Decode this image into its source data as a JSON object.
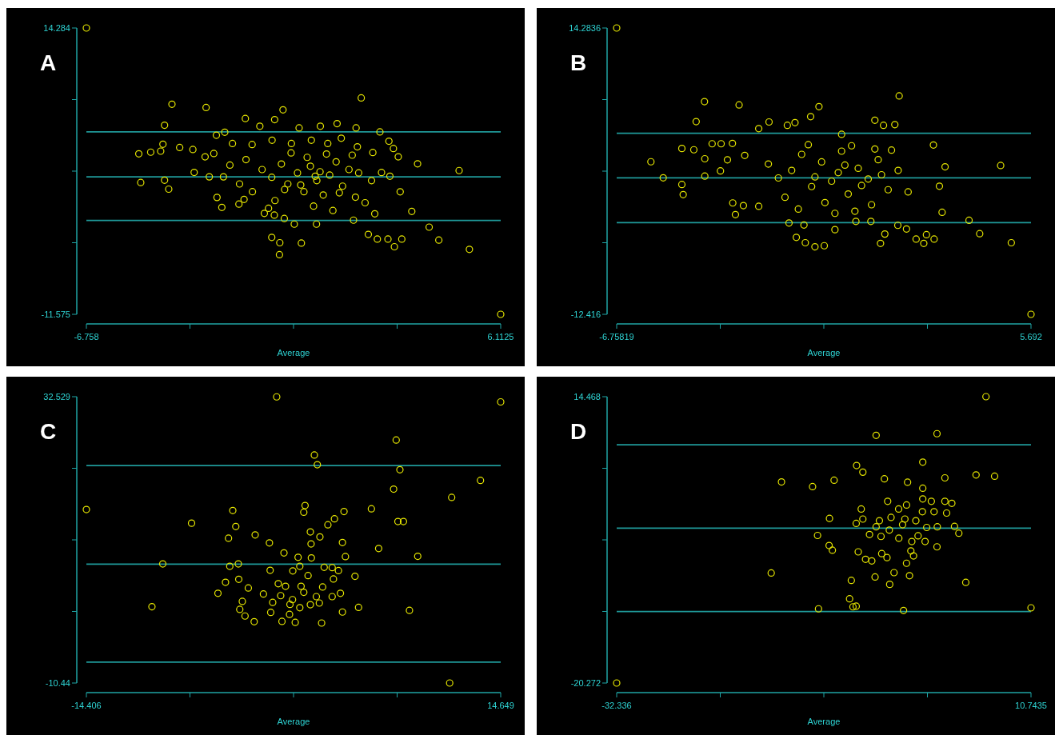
{
  "chart_data": [
    {
      "type": "scatter",
      "title": "A",
      "xlabel": "Average",
      "marker": "circle",
      "xlim": [
        -6.758,
        6.1125
      ],
      "xticks": [
        -6.758,
        {
          "value": -3.54,
          "label": null
        },
        {
          "value": -0.323,
          "label": null
        },
        {
          "value": 2.895,
          "label": null
        },
        6.1125
      ],
      "ylim": [
        -11.575,
        14.284
      ],
      "yticks": [
        -11.575,
        {
          "value": -5.11,
          "label": null
        },
        {
          "value": 1.355,
          "label": null
        },
        {
          "value": 7.819,
          "label": null
        },
        14.284
      ],
      "ref_lines": [
        {
          "axis": "y",
          "value": 4.9,
          "color": "#1f9a9a"
        },
        {
          "axis": "y",
          "value": 0.84,
          "color": "#1f9a9a"
        },
        {
          "axis": "y",
          "value": -3.1,
          "color": "#1f9a9a"
        }
      ],
      "series": [
        {
          "color": "#e6e600",
          "x": [
            -6.758,
            6.1125,
            -4.1,
            -3.04,
            -0.65,
            1.78,
            -1.82,
            -0.91,
            -4.33,
            -1.37,
            -0.15,
            0.51,
            1.03,
            1.62,
            2.36,
            -2.46,
            -2.72,
            1.16,
            2.64,
            -4.38,
            -3.86,
            -3.45,
            -5.13,
            -4.76,
            -4.45,
            2.78,
            2.93,
            3.53,
            4.82,
            -3.07,
            -2.8,
            -2.22,
            -1.61,
            -0.99,
            -0.39,
            0.23,
            0.74,
            1.66,
            2.14,
            -3.41,
            -5.07,
            -4.33,
            -4.2,
            -2.94,
            -2.5,
            2.41,
            2.67,
            2.99,
            3.35,
            3.89,
            4.19,
            5.14,
            -1.0,
            -0.75,
            -0.76,
            -0.08,
            2.0,
            2.28,
            2.61,
            2.81,
            3.04,
            1.54,
            0.39,
            -0.3,
            -0.61,
            -0.92,
            -1.23,
            -2.02,
            -2.55,
            -2.7,
            -1.86,
            -1.3,
            -1.0,
            -0.7,
            -0.5,
            -0.2,
            0.0,
            0.2,
            0.4,
            0.6,
            0.8,
            1.0,
            1.2,
            1.4,
            1.6,
            -1.6,
            -1.8,
            -0.9,
            0.3,
            0.9,
            1.5,
            -0.4,
            0.1,
            0.7,
            -1.1,
            1.9,
            2.1,
            2.2,
            -2.0,
            -2.3,
            1.7,
            0.5,
            -0.1,
            0.35,
            1.1,
            -0.6
          ],
          "values": [
            14.284,
            -11.575,
            7.4,
            7.1,
            6.89,
            7.97,
            6.11,
            6.01,
            5.5,
            5.41,
            5.26,
            5.41,
            5.65,
            5.26,
            4.9,
            4.87,
            4.6,
            4.33,
            4.06,
            3.79,
            3.49,
            3.31,
            2.92,
            3.07,
            3.16,
            3.4,
            2.65,
            2.02,
            1.41,
            2.65,
            2.95,
            3.85,
            3.76,
            4.15,
            3.85,
            4.15,
            3.85,
            3.55,
            3.04,
            1.24,
            0.33,
            0.54,
            -0.27,
            0.84,
            0.84,
            1.23,
            0.9,
            -0.51,
            -2.28,
            -3.7,
            -4.87,
            -5.71,
            -4.63,
            -5.11,
            -6.19,
            -5.14,
            -4.36,
            -4.78,
            -4.78,
            -5.47,
            -4.78,
            -3.07,
            -3.43,
            -3.43,
            -2.92,
            -2.61,
            -2.46,
            -1.62,
            -1.92,
            -1.02,
            -1.2,
            1.5,
            0.8,
            2.0,
            0.2,
            1.2,
            -0.5,
            1.8,
            0.5,
            -0.8,
            1.0,
            2.2,
            0.0,
            1.5,
            -1.0,
            -0.5,
            2.4,
            -1.3,
            -1.8,
            -2.2,
            2.8,
            3.0,
            2.6,
            2.9,
            -2.0,
            -1.5,
            0.5,
            -2.5,
            0.2,
            1.9,
            1.2,
            1.3,
            0.1,
            0.9,
            -0.6,
            -0.3
          ]
        }
      ]
    },
    {
      "type": "scatter",
      "title": "B",
      "xlabel": "Average",
      "marker": "circle",
      "xlim": [
        -6.75819,
        5.692
      ],
      "xticks": [
        -6.75819,
        {
          "value": -3.6457,
          "label": null
        },
        {
          "value": -0.5331,
          "label": null
        },
        {
          "value": 2.5794,
          "label": null
        },
        5.692
      ],
      "ylim": [
        -12.416,
        14.2836
      ],
      "yticks": [
        -12.416,
        {
          "value": -5.7411,
          "label": null
        },
        {
          "value": 0.9338,
          "label": null
        },
        {
          "value": 7.6087,
          "label": null
        },
        14.2836
      ],
      "ref_lines": [
        {
          "axis": "y",
          "value": 4.46,
          "color": "#1f9a9a"
        },
        {
          "axis": "y",
          "value": 0.31,
          "color": "#1f9a9a"
        },
        {
          "axis": "y",
          "value": -3.87,
          "color": "#1f9a9a"
        }
      ],
      "series": [
        {
          "color": "#e6e600",
          "x": [
            -6.75819,
            5.692,
            -4.12,
            -3.08,
            -0.68,
            1.73,
            -0.93,
            -4.37,
            -2.18,
            -1.63,
            -1.4,
            1.0,
            1.26,
            1.6,
            -2.49,
            0.0,
            -4.8,
            -4.44,
            -3.89,
            -3.62,
            -3.28,
            -5.73,
            -5.36,
            -4.11,
            -4.11,
            -4.8,
            -4.76,
            -3.64,
            -3.43,
            -2.91,
            2.76,
            3.11,
            4.78,
            2.94,
            3.02,
            3.83,
            4.15,
            5.1,
            -3.27,
            -3.19,
            -2.95,
            -2.49,
            -1.36,
            -1.09,
            -0.8,
            -0.52,
            -0.2,
            1.17,
            1.3,
            1.69,
            1.95,
            2.24,
            2.47,
            2.78,
            2.55,
            -1.58,
            -1.13,
            0.88,
            0.43,
            -1.5,
            -1.2,
            -0.9,
            -0.6,
            -0.3,
            0.0,
            0.2,
            0.5,
            0.8,
            1.1,
            1.4,
            1.7,
            -1.7,
            -0.5,
            0.3,
            0.9,
            -1.0,
            1.5,
            -0.1,
            0.6,
            -0.8,
            0.1,
            1.2,
            -1.9,
            2.0,
            -2.2,
            0.4,
            -0.2,
            1.0,
            -1.3
          ],
          "values": [
            14.2836,
            -12.416,
            7.42,
            7.11,
            6.95,
            7.95,
            6.02,
            5.55,
            5.52,
            5.21,
            5.46,
            5.68,
            5.21,
            5.27,
            4.9,
            4.37,
            3.05,
            2.93,
            3.49,
            3.49,
            3.52,
            1.81,
            0.31,
            2.09,
            0.47,
            -0.31,
            -1.25,
            0.96,
            1.99,
            2.4,
            3.37,
            1.34,
            1.46,
            -0.47,
            -2.9,
            -3.65,
            -4.9,
            -5.74,
            -2.03,
            -3.12,
            -2.28,
            -2.34,
            -5.24,
            -5.74,
            -6.12,
            -6.02,
            -4.52,
            -5.8,
            -4.93,
            -4.12,
            -4.46,
            -5.4,
            -5.8,
            -5.4,
            -4.99,
            -3.9,
            -4.09,
            -3.75,
            -3.75,
            1.0,
            2.5,
            -0.5,
            1.8,
            0.0,
            2.8,
            -1.2,
            1.2,
            0.2,
            2.0,
            -0.8,
            1.0,
            -1.5,
            -2.0,
            3.3,
            -2.2,
            3.4,
            2.9,
            0.8,
            -0.4,
            0.4,
            1.5,
            0.6,
            0.3,
            -1.0,
            1.6,
            -2.8,
            -3.0,
            3.0,
            -2.6
          ]
        }
      ]
    },
    {
      "type": "scatter",
      "title": "C",
      "xlabel": "Average",
      "marker": "circle",
      "xlim": [
        -14.406,
        14.649
      ],
      "xticks": [
        -14.406,
        {
          "value": -7.14225,
          "label": null
        },
        {
          "value": 0.1215,
          "label": null
        },
        {
          "value": 7.38525,
          "label": null
        },
        14.649
      ],
      "ylim": [
        -10.44,
        32.529
      ],
      "yticks": [
        -10.44,
        {
          "value": 0.30225,
          "label": null
        },
        {
          "value": 11.0445,
          "label": null
        },
        {
          "value": 21.78675,
          "label": null
        },
        32.529
      ],
      "ref_lines": [
        {
          "axis": "y",
          "value": 22.2,
          "color": "#1f9a9a"
        },
        {
          "axis": "y",
          "value": 7.4,
          "color": "#1f9a9a"
        },
        {
          "axis": "y",
          "value": -7.3,
          "color": "#1f9a9a"
        }
      ],
      "series": [
        {
          "color": "#e6e600",
          "x": [
            -1.06,
            14.649,
            -14.406,
            11.07,
            7.32,
            1.58,
            1.79,
            7.58,
            13.23,
            7.14,
            11.21,
            0.93,
            0.84,
            -4.14,
            3.66,
            5.58,
            -7.03,
            -3.93,
            2.99,
            2.53,
            7.44,
            7.83,
            -4.44,
            -2.57,
            -1.57,
            1.3,
            1.97,
            1.35,
            3.55,
            6.09,
            8.83,
            -0.55,
            0.44,
            1.37,
            3.76,
            -9.05,
            -4.35,
            -3.75,
            0.56,
            -1.52,
            0.07,
            2.27,
            2.83,
            3.27,
            1.14,
            4.43,
            -4.65,
            -3.72,
            -3.05,
            -0.95,
            -0.44,
            0.65,
            2.92,
            2.16,
            -5.18,
            -1.99,
            -0.78,
            0.84,
            1.72,
            3.41,
            2.83,
            -9.81,
            -3.47,
            -1.34,
            0.05,
            -0.13,
            1.3,
            1.93,
            0.56,
            4.68,
            8.25,
            -3.65,
            -3.28,
            -1.48,
            -0.16,
            -2.64,
            -0.69,
            0.24,
            2.09,
            3.55
          ],
          "values": [
            32.5,
            31.75,
            15.6,
            -10.44,
            26.03,
            23.78,
            22.32,
            21.57,
            19.97,
            18.66,
            17.41,
            16.2,
            15.2,
            15.45,
            15.3,
            15.7,
            13.55,
            13.05,
            14.2,
            13.3,
            13.8,
            13.8,
            11.29,
            11.79,
            10.59,
            12.24,
            11.49,
            10.44,
            10.64,
            9.74,
            8.58,
            9.08,
            8.43,
            8.33,
            8.53,
            7.43,
            7.08,
            7.43,
            7.08,
            6.48,
            6.38,
            6.93,
            6.88,
            6.43,
            5.68,
            5.58,
            4.67,
            5.12,
            3.82,
            4.47,
            4.07,
            4.07,
            5.17,
            3.97,
            3.02,
            2.92,
            2.67,
            3.17,
            2.52,
            3.02,
            2.52,
            1.01,
            1.81,
            1.66,
            2.07,
            1.36,
            1.31,
            1.56,
            0.86,
            0.91,
            0.46,
            0.61,
            -0.39,
            0.16,
            -0.14,
            -1.24,
            -1.19,
            -1.34,
            -1.44,
            0.21
          ]
        }
      ]
    },
    {
      "type": "scatter",
      "title": "D",
      "xlabel": "Average",
      "marker": "circle",
      "xlim": [
        -32.336,
        10.7435
      ],
      "xticks": [
        -32.336,
        {
          "value": -21.566,
          "label": null
        },
        {
          "value": -10.796,
          "label": null
        },
        {
          "value": -0.0266,
          "label": null
        },
        10.7435
      ],
      "ylim": [
        -20.272,
        14.468
      ],
      "yticks": [
        -20.272,
        {
          "value": -11.587,
          "label": null
        },
        {
          "value": -2.902,
          "label": null
        },
        {
          "value": 5.783,
          "label": null
        },
        14.468
      ],
      "ref_lines": [
        {
          "axis": "y",
          "value": 8.64,
          "color": "#1f9a9a"
        },
        {
          "axis": "y",
          "value": -1.48,
          "color": "#1f9a9a"
        },
        {
          "axis": "y",
          "value": -11.6,
          "color": "#1f9a9a"
        }
      ],
      "series": [
        {
          "color": "#e6e600",
          "x": [
            -32.336,
            6.06,
            10.7435,
            -5.36,
            0.97,
            -0.51,
            -7.39,
            -6.74,
            -4.5,
            -2.09,
            1.79,
            5.03,
            6.96,
            -15.2,
            -11.97,
            -9.73,
            -0.51,
            -0.51,
            -4.16,
            -2.2,
            0.38,
            1.79,
            2.51,
            -6.91,
            -3.02,
            -0.55,
            0.66,
            1.97,
            -10.21,
            -6.74,
            -5.02,
            -3.81,
            -2.37,
            -1.23,
            -7.43,
            -2.61,
            -0.1,
            1.0,
            2.79,
            3.24,
            -5.36,
            -3.99,
            -11.45,
            -6.05,
            -4.85,
            -3.0,
            -1.65,
            -0.27,
            -1.0,
            0.97,
            -10.25,
            -9.91,
            -7.22,
            -4.78,
            -1.75,
            -1.47,
            -6.46,
            -5.81,
            -4.23,
            -2.2,
            -16.27,
            -7.94,
            -5.47,
            -3.5,
            -1.89,
            -3.95,
            3.96,
            -8.12,
            -7.77,
            -7.43,
            -11.35,
            -2.51
          ],
          "values": [
            -20.272,
            14.468,
            -11.15,
            9.78,
            9.98,
            6.53,
            6.12,
            5.31,
            4.5,
            4.09,
            4.62,
            4.98,
            4.82,
            4.13,
            3.56,
            4.33,
            3.36,
            2.06,
            1.77,
            1.33,
            1.77,
            1.77,
            1.53,
            0.84,
            0.84,
            0.51,
            0.51,
            0.35,
            -0.3,
            -0.38,
            -0.58,
            -0.18,
            -0.38,
            -0.58,
            -0.91,
            -1.07,
            -1.4,
            -1.32,
            -1.27,
            -2.09,
            -1.32,
            -1.72,
            -2.37,
            -2.25,
            -2.49,
            -2.7,
            -3.1,
            -3.1,
            -2.41,
            -3.75,
            -3.59,
            -4.16,
            -4.36,
            -4.57,
            -4.24,
            -4.85,
            -5.26,
            -5.46,
            -5.05,
            -5.74,
            -6.92,
            -7.82,
            -7.41,
            -6.88,
            -7.25,
            -8.3,
            -8.06,
            -10.05,
            -11.03,
            -10.95,
            -11.27,
            -11.47
          ]
        }
      ]
    }
  ]
}
